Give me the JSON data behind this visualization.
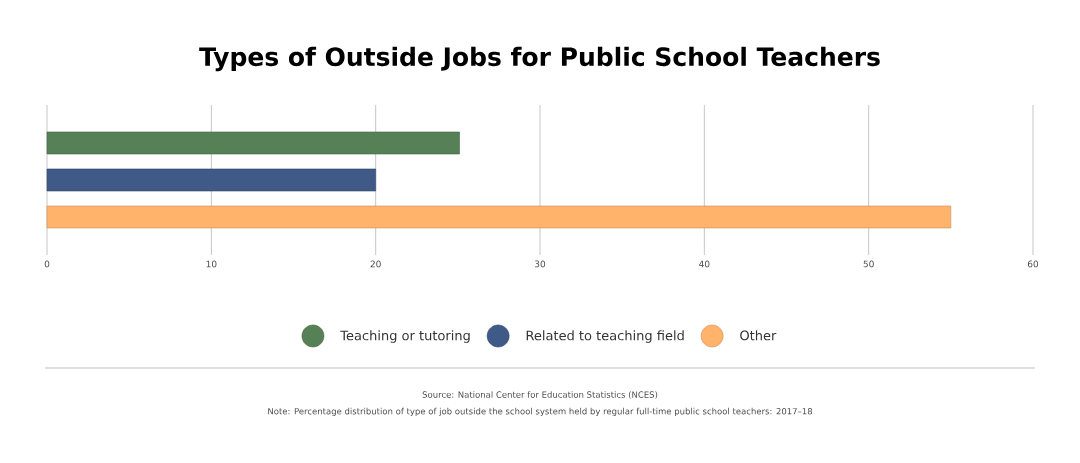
{
  "chart_data": {
    "type": "bar",
    "orientation": "horizontal",
    "title": "Types of Outside Jobs for Public School Teachers",
    "categories": [
      null
    ],
    "series": [
      {
        "name": "Teaching or tutoring",
        "color": "#568156",
        "values": [
          25.1
        ]
      },
      {
        "name": "Related to teaching field",
        "color": "#3f5a86",
        "values": [
          20
        ]
      },
      {
        "name": "Other",
        "color": "#ffb36b",
        "values": [
          55
        ]
      }
    ],
    "xlim": [
      0,
      60
    ],
    "xticks": [
      0,
      10,
      20,
      30,
      40,
      50,
      60
    ],
    "grid": "x",
    "legend": "bottom",
    "annotations": [
      "Source: National Center for Education Statistics (NCES)",
      "Note: Percentage distribution of type of job outside the school system held by regular full-time public school teachers: 2017–18"
    ]
  }
}
